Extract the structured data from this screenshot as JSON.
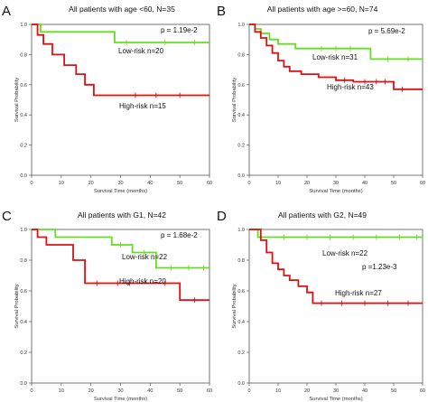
{
  "colors": {
    "low_risk": "#66dd22",
    "high_risk": "#dd1111",
    "axis": "#555555"
  },
  "chart_data": [
    {
      "type": "line",
      "panel": "A",
      "title": "All patients with age <60, N=35",
      "xlabel": "Survival Time (months)",
      "ylabel": "Survival Probability",
      "xlim": [
        0,
        60
      ],
      "ylim": [
        0,
        1.0
      ],
      "xticks": [
        0,
        10,
        20,
        30,
        40,
        50,
        60
      ],
      "yticks": [
        0.0,
        0.2,
        0.4,
        0.6,
        0.8,
        1.0
      ],
      "p_value": "p = 1.19e-2",
      "legend_position": "right",
      "series": [
        {
          "label": "Low-risk n=20",
          "color": "#66dd22",
          "x": [
            0,
            3,
            14,
            28,
            60
          ],
          "y": [
            1.0,
            0.95,
            0.95,
            0.88,
            0.88
          ],
          "censor_x": [
            32,
            45,
            55
          ]
        },
        {
          "label": "High-risk n=15",
          "color": "#dd1111",
          "x": [
            0,
            2,
            4,
            7,
            11,
            15,
            18,
            21,
            24,
            60
          ],
          "y": [
            1.0,
            0.93,
            0.87,
            0.8,
            0.73,
            0.67,
            0.6,
            0.53,
            0.53,
            0.53
          ],
          "censor_x": [
            35,
            42,
            50
          ]
        }
      ]
    },
    {
      "type": "line",
      "panel": "B",
      "title": "All patients with age >=60, N=74",
      "xlabel": "Survival Time (months)",
      "ylabel": "Survival Probability",
      "xlim": [
        0,
        60
      ],
      "ylim": [
        0,
        1.0
      ],
      "xticks": [
        0,
        10,
        20,
        30,
        40,
        50,
        60
      ],
      "yticks": [
        0.0,
        0.2,
        0.4,
        0.6,
        0.8,
        1.0
      ],
      "p_value": "p = 5.69e-2",
      "legend_position": "right",
      "series": [
        {
          "label": "Low-risk n=31",
          "color": "#66dd22",
          "x": [
            0,
            2,
            4,
            7,
            10,
            16,
            22,
            42,
            60
          ],
          "y": [
            1.0,
            0.97,
            0.94,
            0.9,
            0.87,
            0.84,
            0.84,
            0.77,
            0.77
          ],
          "censor_x": [
            25,
            30,
            35,
            48,
            55
          ]
        },
        {
          "label": "High-risk n=43",
          "color": "#dd1111",
          "x": [
            0,
            2,
            4,
            6,
            8,
            10,
            12,
            14,
            18,
            24,
            30,
            36,
            50,
            60
          ],
          "y": [
            1.0,
            0.95,
            0.91,
            0.86,
            0.81,
            0.76,
            0.72,
            0.69,
            0.67,
            0.65,
            0.63,
            0.62,
            0.57,
            0.57
          ],
          "censor_x": [
            33,
            40,
            44,
            47,
            53
          ]
        }
      ]
    },
    {
      "type": "line",
      "panel": "C",
      "title": "All patients with G1, N=42",
      "xlabel": "Survival Time (months)",
      "ylabel": "Survival Probability",
      "xlim": [
        0,
        60
      ],
      "ylim": [
        0,
        1.0
      ],
      "xticks": [
        0,
        10,
        20,
        30,
        40,
        50,
        60
      ],
      "yticks": [
        0.0,
        0.2,
        0.4,
        0.6,
        0.8,
        1.0
      ],
      "p_value": "p = 1.68e-2",
      "legend_position": "right",
      "series": [
        {
          "label": "Low-risk n=22",
          "color": "#66dd22",
          "x": [
            0,
            8,
            27,
            34,
            42,
            60
          ],
          "y": [
            1.0,
            0.95,
            0.9,
            0.85,
            0.75,
            0.75
          ],
          "censor_x": [
            30,
            38,
            47,
            53,
            58
          ]
        },
        {
          "label": "High-risk n=20",
          "color": "#dd1111",
          "x": [
            0,
            2,
            5,
            14,
            18,
            50,
            60
          ],
          "y": [
            1.0,
            0.95,
            0.9,
            0.8,
            0.65,
            0.54,
            0.54
          ],
          "censor_x": [
            22,
            29,
            33,
            45,
            55
          ]
        }
      ]
    },
    {
      "type": "line",
      "panel": "D",
      "title": "All patients with G2, N=49",
      "xlabel": "Survival Time (months)",
      "ylabel": "Survival Probability",
      "xlim": [
        0,
        60
      ],
      "ylim": [
        0,
        1.0
      ],
      "xticks": [
        0,
        10,
        20,
        30,
        40,
        50,
        60
      ],
      "yticks": [
        0.0,
        0.2,
        0.4,
        0.6,
        0.8,
        1.0
      ],
      "p_value": "p =1.23e-3",
      "legend_position": "right",
      "series": [
        {
          "label": "Low-risk n=22",
          "color": "#66dd22",
          "x": [
            0,
            3,
            60
          ],
          "y": [
            1.0,
            0.95,
            0.95
          ],
          "censor_x": [
            12,
            20,
            28,
            36,
            44,
            52,
            58
          ]
        },
        {
          "label": "High-risk n=27",
          "color": "#dd1111",
          "x": [
            0,
            4,
            6,
            8,
            10,
            12,
            14,
            17,
            20,
            22,
            60
          ],
          "y": [
            1.0,
            0.93,
            0.85,
            0.78,
            0.74,
            0.7,
            0.67,
            0.63,
            0.59,
            0.52,
            0.52
          ],
          "censor_x": [
            25,
            32,
            40,
            48,
            55
          ]
        }
      ]
    }
  ]
}
